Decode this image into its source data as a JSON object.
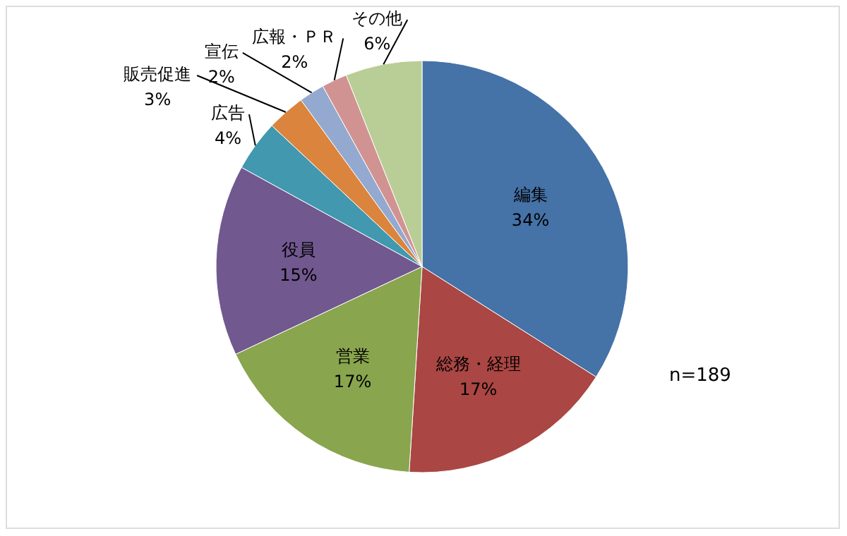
{
  "chart_data": {
    "type": "pie",
    "categories": [
      "編集",
      "総務・経理",
      "営業",
      "役員",
      "広告",
      "販売促進",
      "宣伝",
      "広報・ＰＲ",
      "その他"
    ],
    "values": [
      34,
      17,
      17,
      15,
      4,
      3,
      2,
      2,
      6
    ],
    "colors": [
      "#4572a7",
      "#aa4643",
      "#89a54e",
      "#71588f",
      "#4198af",
      "#db843d",
      "#93a9cf",
      "#d19392",
      "#b9cd96"
    ],
    "value_labels": [
      "34%",
      "17%",
      "17%",
      "15%",
      "4%",
      "3%",
      "2%",
      "2%",
      "6%"
    ],
    "annotations": [
      "n=189"
    ]
  }
}
